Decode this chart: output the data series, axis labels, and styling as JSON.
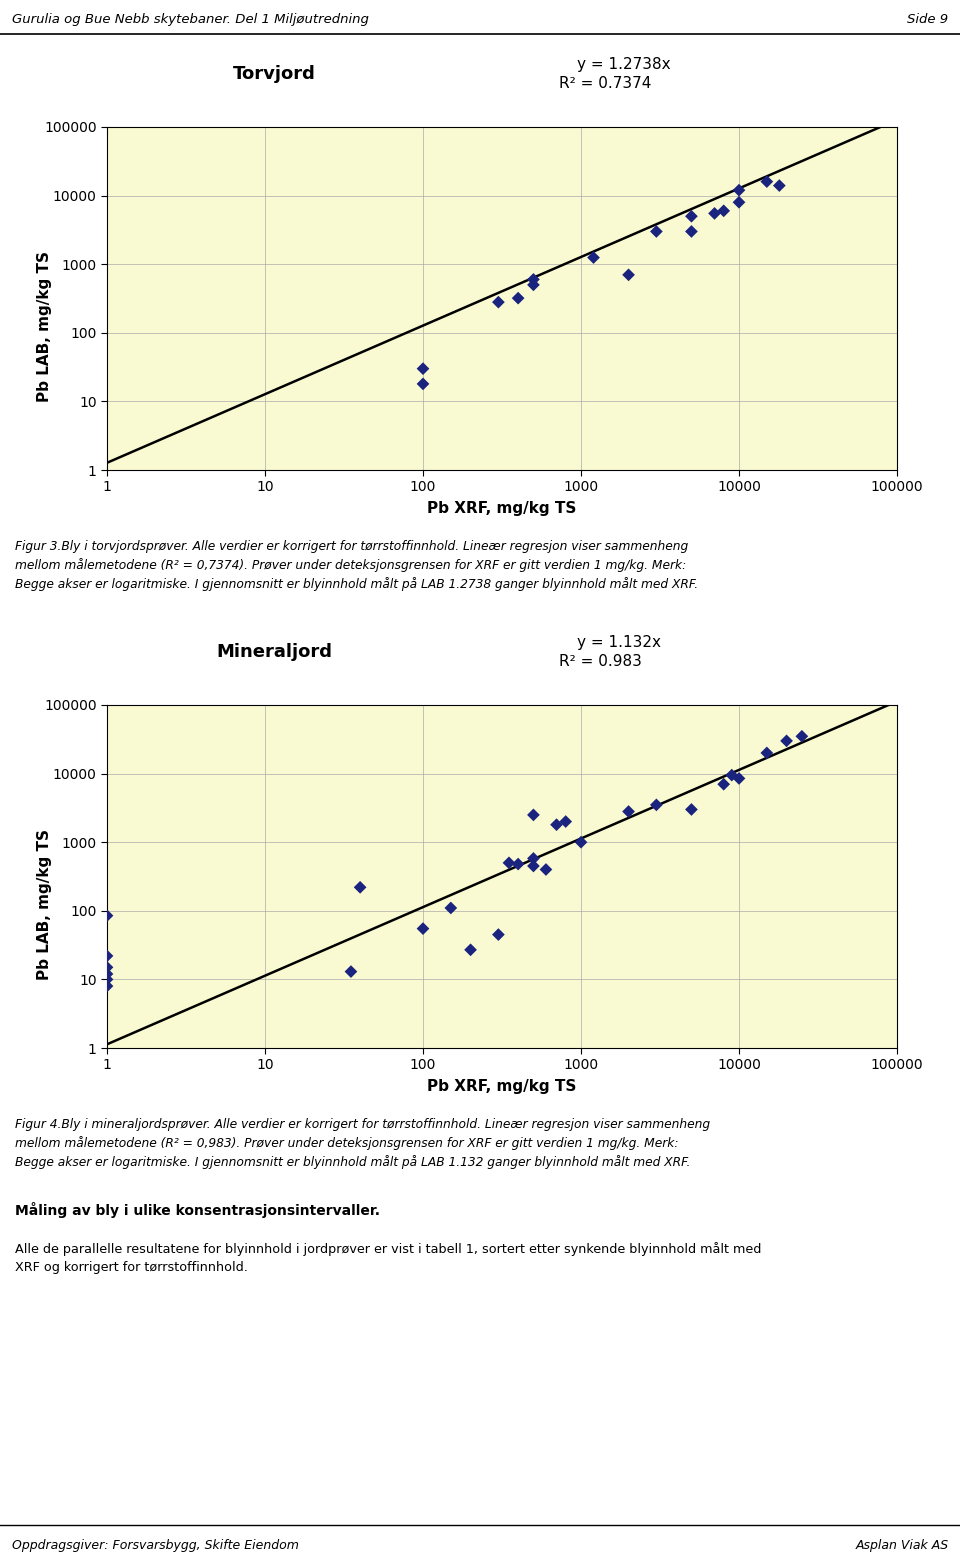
{
  "page_header": "Gurulia og Bue Nebb skytebaner. Del 1 Miljøutredning",
  "page_number": "Side 9",
  "footer_left": "Oppdragsgiver: Forsvarsbygg, Skifte Eiendom",
  "footer_right": "Asplan Viak AS",
  "chart1": {
    "title": "Torvjord",
    "equation": "y = 1.2738x",
    "r2": "R² = 0.7374",
    "xlabel": "Pb XRF, mg/kg TS",
    "ylabel": "Pb LAB, mg/kg TS",
    "xlim": [
      1,
      100000
    ],
    "ylim": [
      1,
      100000
    ],
    "slope": 1.2738,
    "bg_outer": "#c6eef5",
    "bg_inner": "#fafad2",
    "scatter_color": "#1a237e",
    "line_color": "#000000",
    "data_x": [
      100,
      100,
      300,
      400,
      500,
      500,
      1200,
      2000,
      3000,
      5000,
      5000,
      7000,
      8000,
      10000,
      10000,
      15000,
      18000
    ],
    "data_y": [
      18,
      30,
      280,
      320,
      500,
      600,
      1250,
      700,
      3000,
      3000,
      5000,
      5500,
      6000,
      8000,
      12000,
      16000,
      14000
    ]
  },
  "caption1": "Figur 3.Bly i torvjordsprøver. Alle verdier er korrigert for tørrstoffinnhold. Lineær regresjon viser sammenheng\nmellom målemetodene (R² = 0,7374). Prøver under deteksjonsgrensen for XRF er gitt verdien 1 mg/kg. Merk:\nBegge akser er logaritmiske. I gjennomsnitt er blyinnhold målt på LAB 1.2738 ganger blyinnhold målt med XRF.",
  "chart2": {
    "title": "Mineraljord",
    "equation": "y = 1.132x",
    "r2": "R² = 0.983",
    "xlabel": "Pb XRF, mg/kg TS",
    "ylabel": "Pb LAB, mg/kg TS",
    "xlim": [
      1,
      100000
    ],
    "ylim": [
      1,
      100000
    ],
    "slope": 1.132,
    "bg_outer": "#c6eef5",
    "bg_inner": "#fafad2",
    "scatter_color": "#1a237e",
    "line_color": "#000000",
    "data_x": [
      1,
      1,
      1,
      1,
      1,
      1,
      35,
      40,
      100,
      150,
      200,
      300,
      350,
      400,
      500,
      500,
      500,
      600,
      700,
      800,
      1000,
      2000,
      3000,
      5000,
      8000,
      9000,
      10000,
      15000,
      20000,
      25000
    ],
    "data_y": [
      8,
      10,
      12,
      15,
      22,
      85,
      13,
      220,
      55,
      110,
      27,
      45,
      500,
      480,
      450,
      580,
      2500,
      400,
      1800,
      2000,
      1000,
      2800,
      3500,
      3000,
      7000,
      9500,
      8500,
      20000,
      30000,
      35000
    ]
  },
  "caption2": "Figur 4.Bly i mineraljordsprøver. Alle verdier er korrigert for tørrstoffinnhold. Lineær regresjon viser sammenheng\nmellom målemetodene (R² = 0,983). Prøver under deteksjonsgrensen for XRF er gitt verdien 1 mg/kg. Merk:\nBegge akser er logaritmiske. I gjennomsnitt er blyinnhold målt på LAB 1.132 ganger blyinnhold målt med XRF.",
  "section_title": "Måling av bly i ulike konsentrasjonsintervaller.",
  "section_body": "Alle de parallelle resultatene for blyinnhold i jordprøver er vist i tabell 1, sortert etter synkende blyinnhold målt med\nXRF og korrigert for tørrstoffinnhold."
}
